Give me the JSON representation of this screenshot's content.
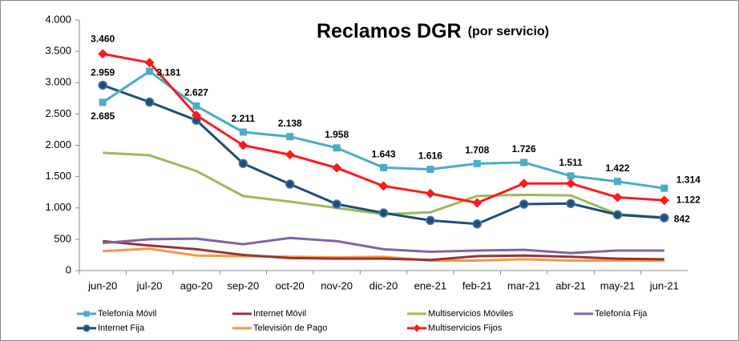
{
  "chart_data": {
    "type": "line",
    "title": "Reclamos DGR",
    "subtitle": "(por servicio)",
    "categories": [
      "jun-20",
      "jul-20",
      "ago-20",
      "sep-20",
      "oct-20",
      "nov-20",
      "dic-20",
      "ene-21",
      "feb-21",
      "mar-21",
      "abr-21",
      "may-21",
      "jun-21"
    ],
    "ylim": [
      0,
      4000
    ],
    "yticks": [
      0,
      500,
      {
        "value": 1000,
        "label": "1.000"
      },
      {
        "value": 1500,
        "label": "1.500"
      },
      {
        "value": 2000,
        "label": "2.000"
      },
      {
        "value": 2500,
        "label": "2.500"
      },
      {
        "value": 3000,
        "label": "3.000"
      },
      {
        "value": 3500,
        "label": "3.500"
      },
      {
        "value": 4000,
        "label": "4.000"
      }
    ],
    "series": [
      {
        "name": "Telefonía Móvil",
        "color": "#4bacc6",
        "marker": "square",
        "values": [
          2685,
          3181,
          2627,
          2211,
          2138,
          1958,
          1643,
          1616,
          1708,
          1726,
          1511,
          1422,
          1314
        ],
        "value_labels": [
          "2.685",
          "3.181",
          "2.627",
          "2.211",
          "2.138",
          "1.958",
          "1.643",
          "1.616",
          "1.708",
          "1.726",
          "1.511",
          "1.422",
          "1.314"
        ]
      },
      {
        "name": "Internet Móvil",
        "color": "#943634",
        "marker": "none",
        "values": [
          470,
          400,
          340,
          250,
          200,
          190,
          190,
          170,
          230,
          240,
          220,
          190,
          180
        ]
      },
      {
        "name": "Multiservicios Móviles",
        "color": "#9bbb59",
        "marker": "none",
        "values": [
          1880,
          1840,
          1590,
          1190,
          1100,
          1000,
          900,
          930,
          1190,
          1210,
          1200,
          900,
          850
        ]
      },
      {
        "name": "Telefonía Fija",
        "color": "#8064a2",
        "marker": "none",
        "values": [
          440,
          500,
          510,
          420,
          520,
          470,
          340,
          300,
          320,
          330,
          280,
          320,
          320
        ]
      },
      {
        "name": "Internet Fija",
        "color": "#1f4e79",
        "marker": "circle",
        "values": [
          2959,
          2690,
          2400,
          1710,
          1380,
          1060,
          920,
          800,
          745,
          1060,
          1070,
          890,
          842
        ],
        "value_labels": [
          "2.959",
          null,
          null,
          null,
          null,
          null,
          null,
          null,
          null,
          null,
          null,
          null,
          "842"
        ]
      },
      {
        "name": "Televisión de Pago",
        "color": "#f79646",
        "marker": "none",
        "values": [
          310,
          350,
          240,
          230,
          220,
          210,
          220,
          160,
          160,
          180,
          160,
          160,
          160
        ]
      },
      {
        "name": "Multiservicios Fijos",
        "color": "#ff1a1a",
        "marker": "diamond",
        "values": [
          3460,
          3320,
          2480,
          2000,
          1850,
          1640,
          1350,
          1230,
          1080,
          1390,
          1390,
          1170,
          1122
        ],
        "value_labels": [
          "3.460",
          null,
          null,
          null,
          null,
          null,
          null,
          null,
          null,
          null,
          null,
          null,
          "1.122"
        ]
      }
    ]
  }
}
